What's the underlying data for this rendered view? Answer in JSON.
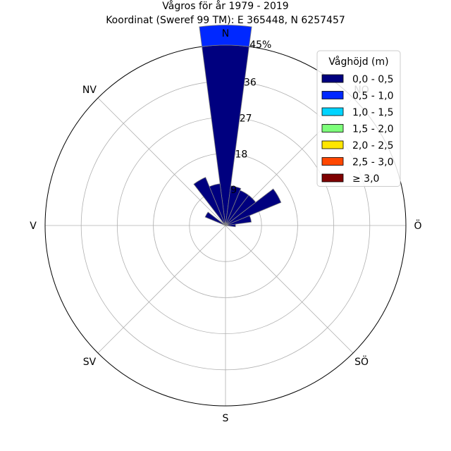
{
  "chart_data": {
    "type": "polar-bar",
    "title": "Vågros för år 1979 - 2019",
    "subtitle": "Koordinat (Sweref 99 TM): E 365448, N 6257457",
    "directions": [
      "N",
      "NO",
      "Ö",
      "SÖ",
      "S",
      "SV",
      "V",
      "NV"
    ],
    "ring_values": [
      9,
      18,
      27,
      36
    ],
    "ring_labels": [
      "9",
      "18",
      "27",
      "36"
    ],
    "outer_label": "45%",
    "rmax": 45,
    "grid": true,
    "legend_placement": "top-right",
    "legend_title": "Våghöjd (m)",
    "series": [
      {
        "name": "0,0 - 0,5",
        "color": "#00007f"
      },
      {
        "name": "0,5 - 1,0",
        "color": "#0028ff"
      },
      {
        "name": "1,0 - 1,5",
        "color": "#00d4ff"
      },
      {
        "name": "1,5 - 2,0",
        "color": "#7dff7a"
      },
      {
        "name": "2,0 - 2,5",
        "color": "#ffe600"
      },
      {
        "name": "2,5 - 3,0",
        "color": "#ff4700"
      },
      {
        "name": "≥ 3,0",
        "color": "#7f0000"
      }
    ],
    "sectors": [
      {
        "angle": 0,
        "values": [
          45,
          5,
          0,
          0,
          0,
          0,
          0
        ]
      },
      {
        "angle": 15,
        "values": [
          10,
          0,
          0,
          0,
          0,
          0,
          0
        ]
      },
      {
        "angle": 30,
        "values": [
          9.5,
          0,
          0,
          0,
          0,
          0,
          0
        ]
      },
      {
        "angle": 45,
        "values": [
          9.5,
          0,
          0,
          0,
          0,
          0,
          0
        ]
      },
      {
        "angle": 60,
        "values": [
          15,
          0,
          0,
          0,
          0,
          0,
          0
        ]
      },
      {
        "angle": 75,
        "values": [
          6.5,
          0,
          0,
          0,
          0,
          0,
          0
        ]
      },
      {
        "angle": 90,
        "values": [
          2.5,
          0,
          0,
          0,
          0,
          0,
          0
        ]
      },
      {
        "angle": 300,
        "values": [
          5.5,
          0,
          0,
          0,
          0,
          0,
          0
        ]
      },
      {
        "angle": 330,
        "values": [
          13,
          0,
          0,
          0,
          0,
          0,
          0
        ]
      },
      {
        "angle": 345,
        "values": [
          10.5,
          0,
          0,
          0,
          0,
          0,
          0
        ]
      }
    ]
  }
}
